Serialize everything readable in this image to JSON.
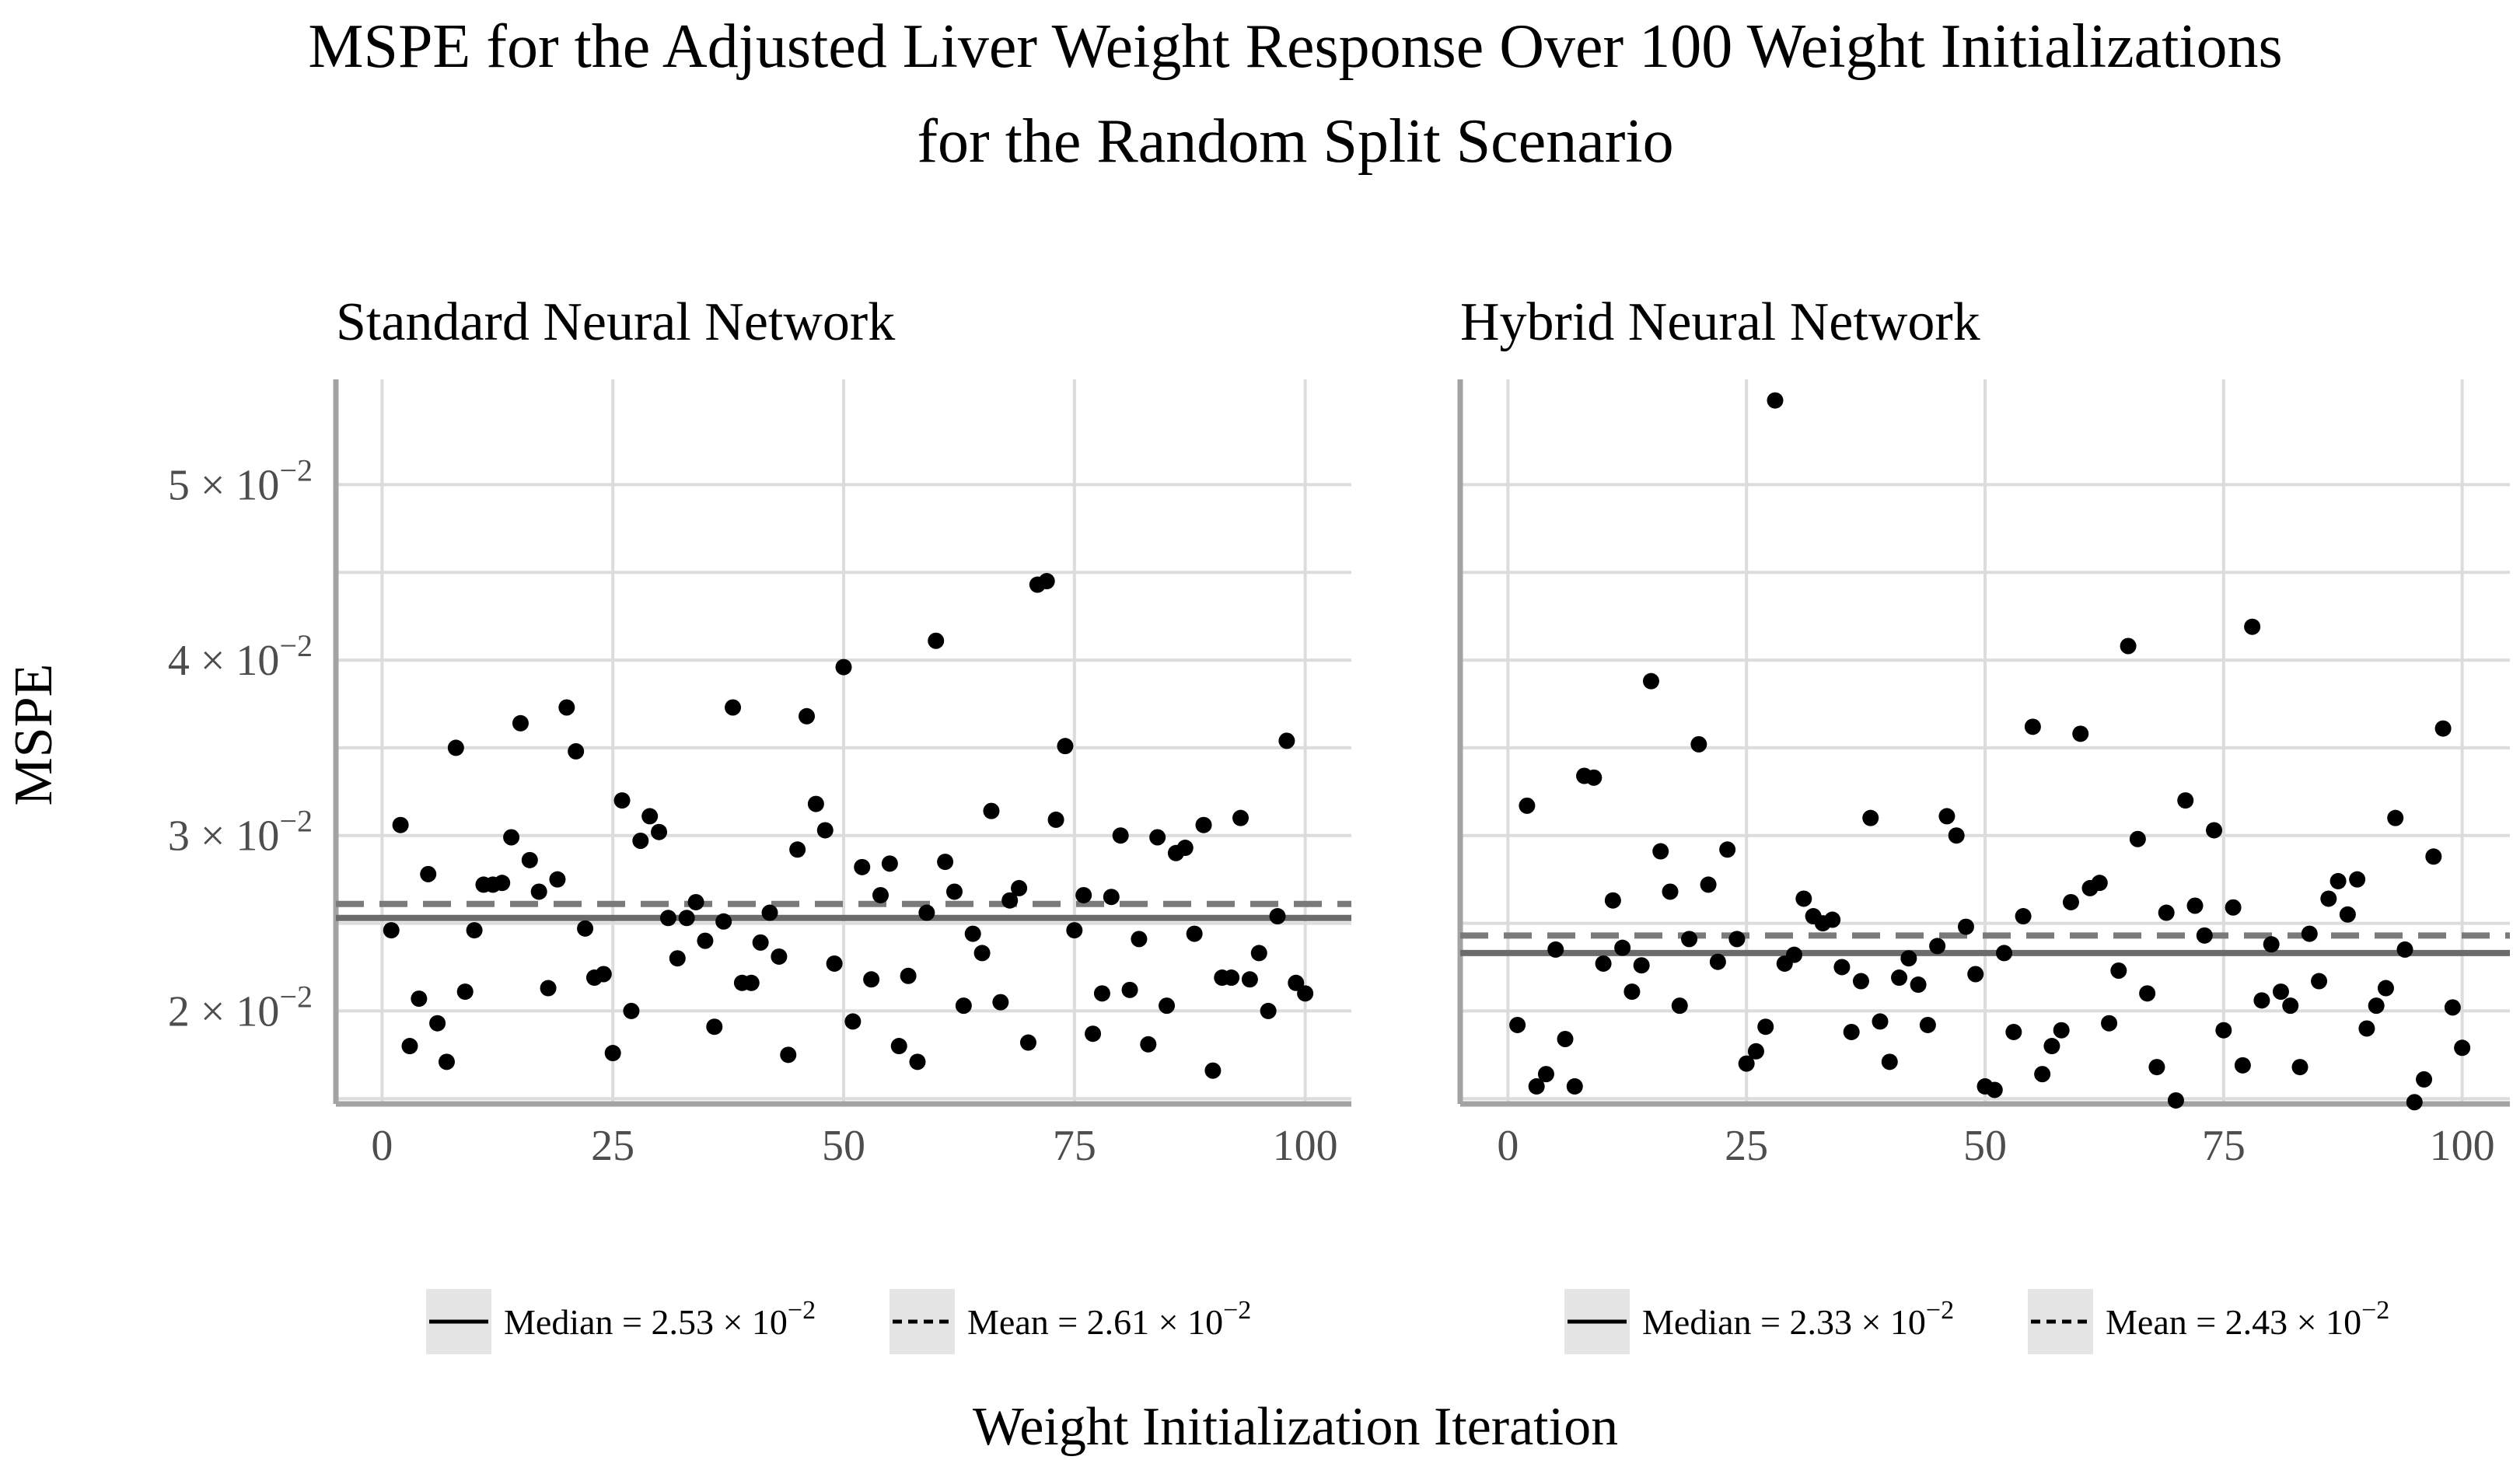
{
  "chart_data": [
    {
      "type": "scatter",
      "panel": "Standard Neural Network",
      "title": "Standard Neural Network",
      "xlabel": "Weight Initialization Iteration",
      "ylabel": "MSPE",
      "xlim": [
        -5,
        105
      ],
      "ylim": [
        0.0147,
        0.056
      ],
      "x_ticks": [
        0,
        25,
        50,
        75,
        100
      ],
      "x_tick_labels": [
        "0",
        "25",
        "50",
        "75",
        "100"
      ],
      "y_ticks": [
        0.02,
        0.03,
        0.04,
        0.05
      ],
      "y_tick_labels": [
        {
          "mantissa": "2 × 10",
          "exp": "−2"
        },
        {
          "mantissa": "3 × 10",
          "exp": "−2"
        },
        {
          "mantissa": "4 × 10",
          "exp": "−2"
        },
        {
          "mantissa": "5 × 10",
          "exp": "−2"
        }
      ],
      "median": 0.0253,
      "mean": 0.0261,
      "legend": {
        "median_label": "Median = 2.53 × 10",
        "median_exp": "−2",
        "mean_label": "Mean = 2.61 × 10",
        "mean_exp": "−2"
      },
      "x": [
        1,
        2,
        3,
        4,
        5,
        6,
        7,
        8,
        9,
        10,
        11,
        12,
        13,
        14,
        15,
        16,
        17,
        18,
        19,
        20,
        21,
        22,
        23,
        24,
        25,
        26,
        27,
        28,
        29,
        30,
        31,
        32,
        33,
        34,
        35,
        36,
        37,
        38,
        39,
        40,
        41,
        42,
        43,
        44,
        45,
        46,
        47,
        48,
        49,
        50,
        51,
        52,
        53,
        54,
        55,
        56,
        57,
        58,
        59,
        60,
        61,
        62,
        63,
        64,
        65,
        66,
        67,
        68,
        69,
        70,
        71,
        72,
        73,
        74,
        75,
        76,
        77,
        78,
        79,
        80,
        81,
        82,
        83,
        84,
        85,
        86,
        87,
        88,
        89,
        90,
        91,
        92,
        93,
        94,
        95,
        96,
        97,
        98,
        99,
        100
      ],
      "y": [
        0.0246,
        0.0306,
        0.018,
        0.0207,
        0.0278,
        0.0193,
        0.0171,
        0.035,
        0.0211,
        0.0246,
        0.0272,
        0.0272,
        0.0273,
        0.0299,
        0.0364,
        0.0286,
        0.0268,
        0.0213,
        0.0275,
        0.0373,
        0.0348,
        0.0247,
        0.0219,
        0.0221,
        0.0176,
        0.032,
        0.02,
        0.0297,
        0.0311,
        0.0302,
        0.0253,
        0.023,
        0.0253,
        0.0262,
        0.024,
        0.0191,
        0.0251,
        0.0373,
        0.0216,
        0.0216,
        0.0239,
        0.0256,
        0.0231,
        0.0175,
        0.0292,
        0.0368,
        0.0318,
        0.0303,
        0.0227,
        0.0396,
        0.0194,
        0.0282,
        0.0218,
        0.0266,
        0.0284,
        0.018,
        0.022,
        0.0171,
        0.0256,
        0.0411,
        0.0285,
        0.0268,
        0.0203,
        0.0244,
        0.0233,
        0.0314,
        0.0205,
        0.0263,
        0.027,
        0.0182,
        0.0443,
        0.0445,
        0.0309,
        0.0351,
        0.0246,
        0.0266,
        0.0187,
        0.021,
        0.0265,
        0.03,
        0.0212,
        0.0241,
        0.0181,
        0.0299,
        0.0203,
        0.029,
        0.0293,
        0.0244,
        0.0306,
        0.0166,
        0.0219,
        0.0219,
        0.031,
        0.0218,
        0.0233,
        0.02,
        0.0254,
        0.0354,
        0.0216,
        0.021
      ]
    },
    {
      "type": "scatter",
      "panel": "Hybrid Neural Network",
      "title": "Hybrid Neural Network",
      "xlabel": "Weight Initialization Iteration",
      "ylabel": "MSPE",
      "xlim": [
        -5,
        105
      ],
      "ylim": [
        0.0147,
        0.056
      ],
      "x_ticks": [
        0,
        25,
        50,
        75,
        100
      ],
      "x_tick_labels": [
        "0",
        "25",
        "50",
        "75",
        "100"
      ],
      "y_ticks": [
        0.02,
        0.03,
        0.04,
        0.05
      ],
      "median": 0.0233,
      "mean": 0.0243,
      "legend": {
        "median_label": "Median = 2.33 × 10",
        "median_exp": "−2",
        "mean_label": "Mean = 2.43 × 10",
        "mean_exp": "−2"
      },
      "x": [
        1,
        2,
        3,
        4,
        5,
        6,
        7,
        8,
        9,
        10,
        11,
        12,
        13,
        14,
        15,
        16,
        17,
        18,
        19,
        20,
        21,
        22,
        23,
        24,
        25,
        26,
        27,
        28,
        29,
        30,
        31,
        32,
        33,
        34,
        35,
        36,
        37,
        38,
        39,
        40,
        41,
        42,
        43,
        44,
        45,
        46,
        47,
        48,
        49,
        50,
        51,
        52,
        53,
        54,
        55,
        56,
        57,
        58,
        59,
        60,
        61,
        62,
        63,
        64,
        65,
        66,
        67,
        68,
        69,
        70,
        71,
        72,
        73,
        74,
        75,
        76,
        77,
        78,
        79,
        80,
        81,
        82,
        83,
        84,
        85,
        86,
        87,
        88,
        89,
        90,
        91,
        92,
        93,
        94,
        95,
        96,
        97,
        98,
        99,
        100
      ],
      "y": [
        0.0192,
        0.0317,
        0.0157,
        0.0164,
        0.0235,
        0.0184,
        0.0157,
        0.0334,
        0.0333,
        0.0227,
        0.0263,
        0.0236,
        0.0211,
        0.0226,
        0.0388,
        0.0291,
        0.0268,
        0.0203,
        0.0241,
        0.0352,
        0.0272,
        0.0228,
        0.0292,
        0.0241,
        0.017,
        0.0177,
        0.0191,
        0.0548,
        0.0227,
        0.0232,
        0.0264,
        0.0254,
        0.025,
        0.0252,
        0.0225,
        0.0188,
        0.0217,
        0.031,
        0.0194,
        0.0171,
        0.0219,
        0.023,
        0.0215,
        0.0192,
        0.0237,
        0.0311,
        0.03,
        0.0248,
        0.0221,
        0.0157,
        0.0155,
        0.0233,
        0.0188,
        0.0254,
        0.0362,
        0.0164,
        0.018,
        0.0189,
        0.0262,
        0.0358,
        0.027,
        0.0273,
        0.0193,
        0.0223,
        0.0408,
        0.0298,
        0.021,
        0.0168,
        0.0256,
        0.0149,
        0.032,
        0.026,
        0.0243,
        0.0303,
        0.0189,
        0.0259,
        0.0169,
        0.0419,
        0.0206,
        0.0238,
        0.0211,
        0.0203,
        0.0168,
        0.0244,
        0.0217,
        0.0264,
        0.0274,
        0.0255,
        0.0275,
        0.019,
        0.0203,
        0.0213,
        0.031,
        0.0235,
        0.0148,
        0.0161,
        0.0288,
        0.0361,
        0.0202,
        0.0179
      ]
    }
  ],
  "main_title_line1": "MSPE for the Adjusted Liver Weight Response Over 100 Weight Initializations",
  "main_title_line2": "for the Random Split Scenario",
  "x_axis_title": "Weight Initialization Iteration",
  "y_axis_title": "MSPE",
  "colors": {
    "points": "#000000",
    "median_line": "#6b6b6b",
    "mean_line": "#7a7a7a",
    "grid": "#dcdcdc",
    "axis": "#a3a3a3",
    "legend_key_bg": "#e5e5e5"
  }
}
